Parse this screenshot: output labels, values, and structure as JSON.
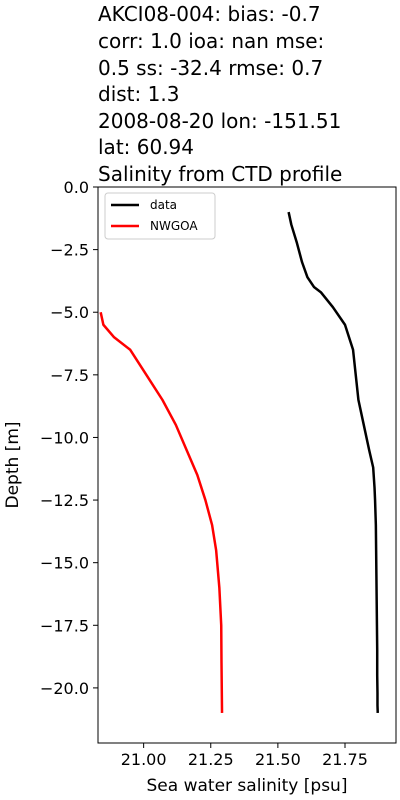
{
  "chart_data": {
    "type": "line",
    "title_lines": [
      "AKCI08-004: bias: -0.7",
      "corr: 1.0  ioa: nan  mse:",
      "0.5  ss: -32.4  rmse: 0.7",
      "dist: 1.3",
      "2008-08-20 lon: -151.51",
      "lat: 60.94",
      "Salinity from CTD profile"
    ],
    "xlabel": "Sea water salinity [psu]",
    "ylabel": "Depth [m]",
    "xlim": [
      20.83,
      21.94
    ],
    "ylim": [
      -22.2,
      0.0
    ],
    "x_ticks": [
      21.0,
      21.25,
      21.5,
      21.75
    ],
    "x_tick_labels": [
      "21.00",
      "21.25",
      "21.50",
      "21.75"
    ],
    "y_ticks": [
      0.0,
      -2.5,
      -5.0,
      -7.5,
      -10.0,
      -12.5,
      -15.0,
      -17.5,
      -20.0
    ],
    "y_tick_labels": [
      "0.0",
      "−2.5",
      "−5.0",
      "−7.5",
      "−10.0",
      "−12.5",
      "−15.0",
      "−17.5",
      "−20.0"
    ],
    "grid": false,
    "legend": {
      "placement": "top-left"
    },
    "series": [
      {
        "name": "data",
        "color": "#000000",
        "x": [
          21.54,
          21.55,
          21.57,
          21.59,
          21.61,
          21.635,
          21.66,
          21.705,
          21.75,
          21.78,
          21.79,
          21.8,
          21.82,
          21.84,
          21.855,
          21.86,
          21.862,
          21.865,
          21.866,
          21.867,
          21.868,
          21.869,
          21.87,
          21.87,
          21.871,
          21.871,
          21.872
        ],
        "y": [
          -1.0,
          -1.5,
          -2.2,
          -3.0,
          -3.6,
          -4.0,
          -4.2,
          -4.8,
          -5.5,
          -6.5,
          -7.5,
          -8.5,
          -9.5,
          -10.5,
          -11.2,
          -12.0,
          -12.5,
          -13.5,
          -14.5,
          -15.5,
          -16.5,
          -17.5,
          -18.5,
          -19.5,
          -20.2,
          -20.7,
          -21.0
        ]
      },
      {
        "name": "NWGOA",
        "color": "#ff0000",
        "x": [
          20.84,
          20.85,
          20.89,
          20.95,
          21.01,
          21.07,
          21.12,
          21.16,
          21.2,
          21.23,
          21.255,
          21.27,
          21.282,
          21.289,
          21.29,
          21.292
        ],
        "y": [
          -5.0,
          -5.5,
          -6.0,
          -6.5,
          -7.5,
          -8.5,
          -9.5,
          -10.5,
          -11.5,
          -12.5,
          -13.5,
          -14.5,
          -16.0,
          -17.5,
          -19.0,
          -21.0
        ]
      }
    ]
  }
}
